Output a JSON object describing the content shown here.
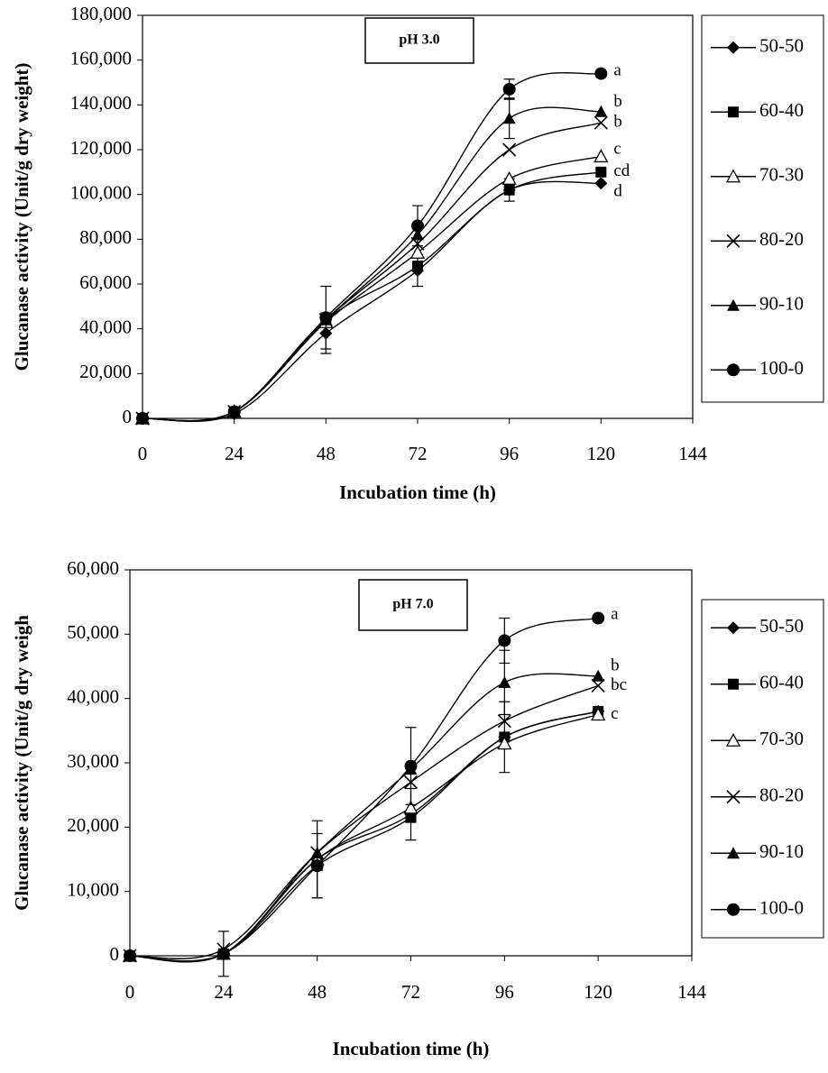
{
  "chart_data": [
    {
      "type": "line",
      "title": "pH 3.0",
      "x_label": "Incubation time (h)",
      "y_label": "Glucanase activity (Unit/g dry weight)",
      "x": [
        0,
        24,
        48,
        72,
        96,
        120
      ],
      "xlim": [
        0,
        144
      ],
      "xticks": [
        0,
        24,
        48,
        72,
        96,
        120,
        144
      ],
      "ylim": [
        0,
        180000
      ],
      "yticks": [
        0,
        {
          "value": 20000,
          "label": "20,000"
        },
        {
          "value": 40000,
          "label": "40,000"
        },
        {
          "value": 60000,
          "label": "60,000"
        },
        {
          "value": 80000,
          "label": "80,000"
        },
        {
          "value": 100000,
          "label": "100,000"
        },
        {
          "value": 120000,
          "label": "120,000"
        },
        {
          "value": 140000,
          "label": "140,000"
        },
        {
          "value": 160000,
          "label": "160,000"
        },
        {
          "value": 180000,
          "label": "180,000"
        }
      ],
      "smooth": true,
      "legend": "right",
      "series": [
        {
          "name": "50-50",
          "color": "#000000",
          "marker": "diamond",
          "values": [
            0,
            2000,
            38000,
            66000,
            102000,
            105000
          ],
          "errors": [
            null,
            null,
            9000,
            7000,
            5000,
            null
          ]
        },
        {
          "name": "60-40",
          "color": "#000000",
          "marker": "square",
          "values": [
            0,
            3000,
            44000,
            68000,
            102000,
            110000
          ],
          "errors": [
            null,
            null,
            null,
            null,
            null,
            null
          ]
        },
        {
          "name": "70-30",
          "color": "#000000",
          "marker": "triangle-open",
          "values": [
            0,
            3000,
            43000,
            74000,
            107000,
            117000
          ],
          "errors": [
            null,
            null,
            null,
            null,
            null,
            null
          ]
        },
        {
          "name": "80-20",
          "color": "#000000",
          "marker": "x",
          "values": [
            0,
            3000,
            44000,
            78000,
            120000,
            132000
          ],
          "errors": [
            null,
            null,
            null,
            null,
            null,
            null
          ]
        },
        {
          "name": "90-10",
          "color": "#000000",
          "marker": "triangle",
          "values": [
            0,
            3000,
            44000,
            82000,
            134000,
            137000
          ],
          "errors": [
            null,
            null,
            null,
            null,
            9000,
            null
          ]
        },
        {
          "name": "100-0",
          "color": "#000000",
          "marker": "circle",
          "values": [
            0,
            3000,
            45000,
            86000,
            147000,
            154000
          ],
          "errors": [
            null,
            null,
            14000,
            9000,
            4500,
            null
          ]
        }
      ],
      "annotations": [
        {
          "text": "a",
          "x": 120,
          "y": 155000
        },
        {
          "text": "b",
          "x": 120,
          "y": 141000
        },
        {
          "text": "b",
          "x": 120,
          "y": 132000
        },
        {
          "text": "c",
          "x": 120,
          "y": 120000
        },
        {
          "text": "cd",
          "x": 120,
          "y": 110000
        },
        {
          "text": "d",
          "x": 120,
          "y": 101000
        }
      ]
    },
    {
      "type": "line",
      "title": "pH 7.0",
      "x_label": "Incubation time (h)",
      "y_label": "Glucanase activity (Unit/g dry weigh",
      "x": [
        0,
        24,
        48,
        72,
        96,
        120
      ],
      "xlim": [
        0,
        144
      ],
      "xticks": [
        0,
        24,
        48,
        72,
        96,
        120,
        144
      ],
      "ylim": [
        0,
        60000
      ],
      "yticks": [
        0,
        {
          "value": 10000,
          "label": "10,000"
        },
        {
          "value": 20000,
          "label": "20,000"
        },
        {
          "value": 30000,
          "label": "30,000"
        },
        {
          "value": 40000,
          "label": "40,000"
        },
        {
          "value": 50000,
          "label": "50,000"
        },
        {
          "value": 60000,
          "label": "60,000"
        }
      ],
      "smooth": true,
      "legend": "right",
      "series": [
        {
          "name": "50-50",
          "color": "#000000",
          "marker": "diamond",
          "values": [
            0,
            300,
            15000,
            22000,
            34000,
            38000
          ],
          "errors": [
            null,
            3500,
            6000,
            4000,
            5500,
            null
          ]
        },
        {
          "name": "60-40",
          "color": "#000000",
          "marker": "square",
          "values": [
            0,
            300,
            14000,
            21500,
            34000,
            38000
          ],
          "errors": [
            null,
            null,
            null,
            null,
            null,
            null
          ]
        },
        {
          "name": "70-30",
          "color": "#000000",
          "marker": "triangle-open",
          "values": [
            0,
            300,
            15000,
            23000,
            33000,
            37500
          ],
          "errors": [
            null,
            null,
            null,
            null,
            null,
            null
          ]
        },
        {
          "name": "80-20",
          "color": "#000000",
          "marker": "x",
          "values": [
            0,
            1000,
            16000,
            27000,
            36500,
            42000
          ],
          "errors": [
            null,
            null,
            null,
            null,
            null,
            null
          ]
        },
        {
          "name": "90-10",
          "color": "#000000",
          "marker": "triangle",
          "values": [
            0,
            300,
            16000,
            29000,
            42500,
            43500
          ],
          "errors": [
            null,
            null,
            null,
            null,
            5000,
            null
          ]
        },
        {
          "name": "100-0",
          "color": "#000000",
          "marker": "circle",
          "values": [
            0,
            300,
            14000,
            29500,
            49000,
            52500
          ],
          "errors": [
            null,
            null,
            5000,
            6000,
            3500,
            null
          ]
        }
      ],
      "annotations": [
        {
          "text": "a",
          "x": 120,
          "y": 53000
        },
        {
          "text": "b",
          "x": 120,
          "y": 45000
        },
        {
          "text": "bc",
          "x": 120,
          "y": 42000
        },
        {
          "text": "c",
          "x": 120,
          "y": 37500
        }
      ]
    }
  ]
}
